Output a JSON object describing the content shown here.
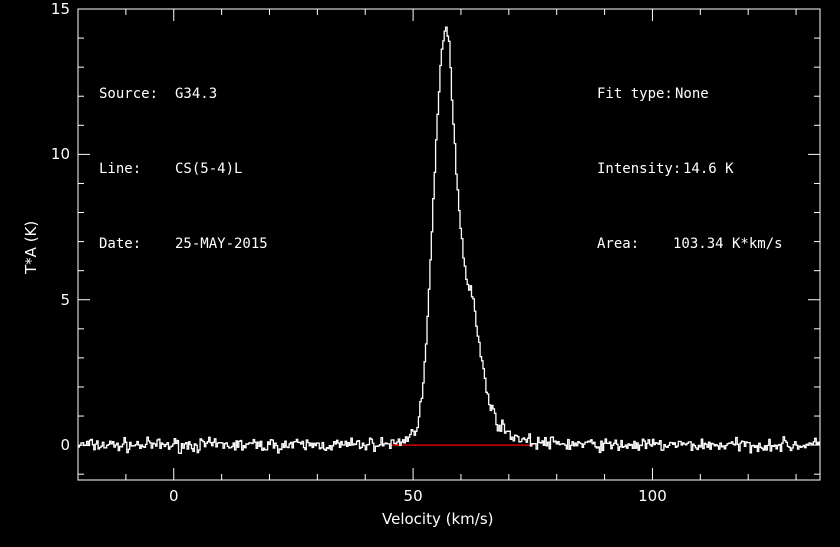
{
  "header_left": {
    "source_label": "Source:",
    "source_value": "G34.3",
    "line_label": "Line:",
    "line_value": "CS(5-4)L",
    "date_label": "Date:",
    "date_value": "25-MAY-2015"
  },
  "header_right": {
    "fit_label": "Fit type:",
    "fit_value": "None",
    "intensity_label": "Intensity:",
    "intensity_value": "14.6 K",
    "area_label": "Area:",
    "area_value": "103.34 K*km/s"
  },
  "colors": {
    "background": "#000000",
    "axes": "#ffffff",
    "spectrum": "#ffffff",
    "baseline": "#ff0000"
  },
  "chart_data": {
    "type": "line",
    "xlabel": "Velocity (km/s)",
    "ylabel": "T*A (K)",
    "xlim": [
      -20,
      135
    ],
    "ylim": [
      -1.2,
      15
    ],
    "xticks": [
      0,
      50,
      100
    ],
    "yticks": [
      0,
      5,
      10,
      15
    ],
    "baseline": {
      "y": 0,
      "x_range": [
        45,
        75
      ]
    },
    "series": [
      {
        "x": [
          -20,
          35,
          46,
          48,
          50,
          51,
          52,
          53,
          54,
          55,
          56,
          56.8,
          57.5,
          58,
          59,
          60,
          61,
          62,
          63,
          64,
          65,
          66,
          67,
          68,
          70,
          72,
          75,
          80,
          90,
          100,
          110,
          120,
          135
        ],
        "y": [
          0,
          0,
          0.05,
          0.15,
          0.4,
          0.8,
          1.8,
          4.0,
          7.5,
          11.0,
          13.5,
          14.6,
          14.0,
          12.5,
          9.5,
          7.5,
          5.8,
          5.5,
          4.5,
          3.2,
          2.3,
          1.5,
          1.0,
          0.7,
          0.4,
          0.25,
          0.1,
          0.05,
          0,
          0,
          0,
          0,
          0
        ]
      }
    ]
  }
}
